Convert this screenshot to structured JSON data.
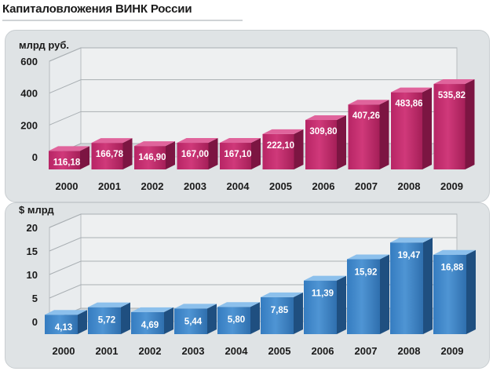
{
  "header": {
    "title": "Капиталовложения ВИНК России"
  },
  "colors": {
    "top_series": "#c2306e",
    "bottom_series": "#3f86c8",
    "panel": "#dfe3e5"
  },
  "chart_data": [
    {
      "type": "bar",
      "unit_label": "млрд руб.",
      "categories": [
        "2000",
        "2001",
        "2002",
        "2003",
        "2004",
        "2005",
        "2006",
        "2007",
        "2008",
        "2009"
      ],
      "values": [
        116.18,
        166.78,
        146.9,
        167.0,
        167.1,
        222.1,
        309.8,
        407.26,
        483.86,
        535.82
      ],
      "data_labels": [
        "116,18",
        "166,78",
        "146,90",
        "167,00",
        "167,10",
        "222,10",
        "309,80",
        "407,26",
        "483,86",
        "535,82"
      ],
      "yticks": [
        0,
        200,
        400,
        600
      ],
      "ylim": [
        0,
        600
      ],
      "grid": true
    },
    {
      "type": "bar",
      "unit_label": "$ млрд",
      "categories": [
        "2000",
        "2001",
        "2002",
        "2003",
        "2004",
        "2005",
        "2006",
        "2007",
        "2008",
        "2009"
      ],
      "values": [
        4.13,
        5.72,
        4.69,
        5.44,
        5.8,
        7.85,
        11.39,
        15.92,
        19.47,
        16.88
      ],
      "data_labels": [
        "4,13",
        "5,72",
        "4,69",
        "5,44",
        "5,80",
        "7,85",
        "11,39",
        "15,92",
        "19,47",
        "16,88"
      ],
      "yticks": [
        0,
        5,
        10,
        15,
        20
      ],
      "ylim": [
        0,
        20
      ],
      "grid": true
    }
  ]
}
